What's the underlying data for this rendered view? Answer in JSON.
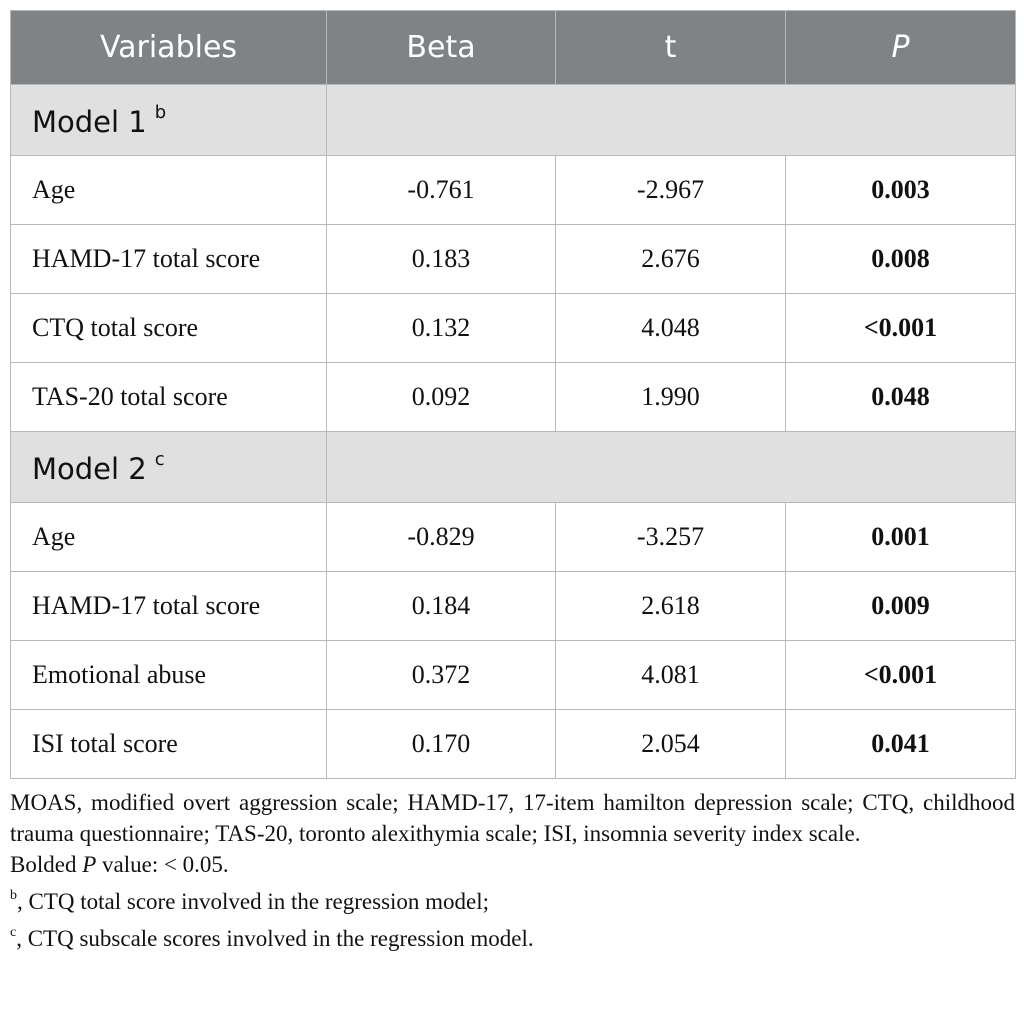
{
  "table": {
    "headers": [
      "Variables",
      "Beta",
      "t",
      "P"
    ],
    "models": [
      {
        "label": "Model 1",
        "sup": "b",
        "rows": [
          {
            "variable": "Age",
            "beta": "-0.761",
            "t": "-2.967",
            "p": "0.003"
          },
          {
            "variable": "HAMD-17 total score",
            "beta": "0.183",
            "t": "2.676",
            "p": "0.008"
          },
          {
            "variable": "CTQ total score",
            "beta": "0.132",
            "t": "4.048",
            "p": "<0.001"
          },
          {
            "variable": "TAS-20 total score",
            "beta": "0.092",
            "t": "1.990",
            "p": "0.048"
          }
        ]
      },
      {
        "label": "Model 2",
        "sup": "c",
        "rows": [
          {
            "variable": "Age",
            "beta": "-0.829",
            "t": "-3.257",
            "p": "0.001"
          },
          {
            "variable": "HAMD-17 total score",
            "beta": "0.184",
            "t": "2.618",
            "p": "0.009"
          },
          {
            "variable": "Emotional abuse",
            "beta": "0.372",
            "t": "4.081",
            "p": "<0.001"
          },
          {
            "variable": "ISI total score",
            "beta": "0.170",
            "t": "2.054",
            "p": "0.041"
          }
        ]
      }
    ]
  },
  "notes": {
    "abbreviations": "MOAS, modified overt aggression scale; HAMD-17, 17-item hamilton depression scale; CTQ, childhood trauma questionnaire; TAS-20, toronto alexithymia scale; ISI, insomnia severity index scale.",
    "bold_prefix": "Bolded ",
    "bold_italic": "P",
    "bold_suffix": " value: < 0.05.",
    "footnote_b_mark": "b",
    "footnote_b": ", CTQ total score involved in the regression model;",
    "footnote_c_mark": "c",
    "footnote_c": ", CTQ subscale scores involved in the regression model."
  },
  "colors": {
    "header_bg": "#7f8385",
    "model_row_bg": "#e0e0e0",
    "border": "#b9b9b9"
  }
}
